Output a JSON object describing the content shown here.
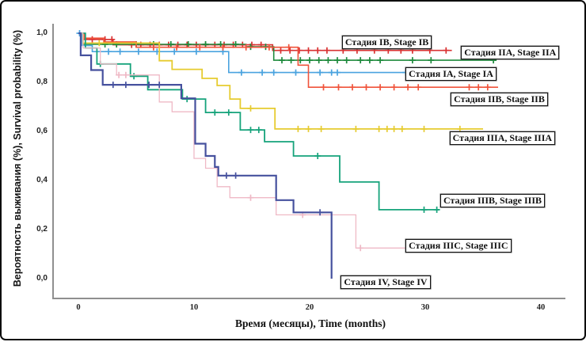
{
  "figure": {
    "background": "#ffffff",
    "border_color": "#0a0a0a"
  },
  "axes": {
    "line_color": "#8f8f8f",
    "tick_label_color": "#222222"
  },
  "chart_data": {
    "type": "line",
    "subtype": "kaplan-meier-step-survival",
    "title": "",
    "xlabel": "Время (месяцы), Time (months)",
    "ylabel": "Вероятность выживания (%), Survival probability (%)",
    "x_ticks": [
      0,
      10,
      20,
      30,
      40
    ],
    "x_tick_labels": [
      "0",
      "10",
      "20",
      "30",
      "40"
    ],
    "y_ticks": [
      1.0,
      0.8,
      0.6,
      0.4,
      0.2,
      0.0
    ],
    "y_tick_labels": [
      "1,0",
      "0,8",
      "0,6",
      "0,4",
      "0,2",
      "0,0"
    ],
    "xlim": [
      -2.2,
      42.5
    ],
    "ylim": [
      0.0,
      1.04
    ],
    "grid": false,
    "legend_position": "boxed labels next to curve ends",
    "marker_meaning": "plus marks = censored observations",
    "series": [
      {
        "id": "ib",
        "label": "Стадия IB, Stage IB",
        "color": "#d93232",
        "line_width": 1.6,
        "steps": [
          [
            0,
            1.0
          ],
          [
            0.3,
            0.975
          ],
          [
            3,
            0.953
          ],
          [
            16.8,
            0.93
          ],
          [
            32.3,
            0.93
          ]
        ],
        "censor_months": [
          1.2,
          2.3,
          2.9,
          4.6,
          5.4,
          6.2,
          7.0,
          7.8,
          8.6,
          9.4,
          10.2,
          11.0,
          11.8,
          12.6,
          13.4,
          14.2,
          15.0,
          15.8,
          17.5,
          18.3,
          19.1,
          19.9,
          20.7,
          21.5,
          22.9,
          24.1,
          25.6,
          26.8,
          27.9,
          28.9,
          30.4,
          31.8
        ],
        "label_anchor": {
          "month": 22.8,
          "prob": 0.99
        }
      },
      {
        "id": "iia",
        "label": "Стадия IIA, Stage IIA",
        "color": "#1f8a3d",
        "line_width": 1.6,
        "steps": [
          [
            0,
            1.0
          ],
          [
            0.4,
            0.955
          ],
          [
            14.5,
            0.945
          ],
          [
            16.9,
            0.89
          ],
          [
            36,
            0.89
          ]
        ],
        "censor_months": [
          2.3,
          3.3,
          5.0,
          6.5,
          8.0,
          9.5,
          11.0,
          12.3,
          13.6,
          14.9,
          16.2,
          17.6,
          18.4,
          19.2,
          20.0,
          20.8,
          21.6,
          22.4,
          23.2,
          24.4,
          25.2,
          26.1,
          28.9,
          30.5,
          35.9
        ],
        "label_anchor": {
          "month": 33.1,
          "prob": 0.948
        }
      },
      {
        "id": "ia",
        "label": "Стадия IA, Stage IA",
        "color": "#4aa3df",
        "line_width": 1.6,
        "steps": [
          [
            0,
            1.0
          ],
          [
            0.3,
            0.95
          ],
          [
            1.2,
            0.925
          ],
          [
            13,
            0.84
          ],
          [
            28.4,
            0.84
          ]
        ],
        "censor_months": [
          0.1,
          2.6,
          3.6,
          5.2,
          6.8,
          8.3,
          10.2,
          12.5,
          14.1,
          15.9,
          16.9,
          18.8,
          20.9,
          21.9,
          22.4,
          28.3
        ],
        "label_anchor": {
          "month": 28.3,
          "prob": 0.861
        }
      },
      {
        "id": "iib",
        "label": "Стадия IIB, Stage IIB",
        "color": "#f0533b",
        "line_width": 1.6,
        "steps": [
          [
            0,
            1.0
          ],
          [
            0.5,
            0.98
          ],
          [
            2.2,
            0.965
          ],
          [
            5,
            0.943
          ],
          [
            19,
            0.87
          ],
          [
            19.9,
            0.78
          ],
          [
            36.3,
            0.78
          ]
        ],
        "censor_months": [
          6.5,
          8.5,
          10.5,
          12.5,
          14.5,
          16.5,
          18.2,
          21.2,
          22.5,
          23.7,
          24.9,
          26.1,
          27.3,
          28.5,
          29.4,
          33.8,
          34.6,
          35.4
        ],
        "label_anchor": {
          "month": 32.2,
          "prob": 0.758
        }
      },
      {
        "id": "iiia",
        "label": "Стадия IIIA, Stage IIIA",
        "color": "#e6cb2f",
        "line_width": 1.8,
        "steps": [
          [
            0,
            1.0
          ],
          [
            0.4,
            0.96
          ],
          [
            7,
            0.888
          ],
          [
            8.1,
            0.853
          ],
          [
            10.7,
            0.816
          ],
          [
            12,
            0.787
          ],
          [
            13.1,
            0.732
          ],
          [
            14,
            0.694
          ],
          [
            17,
            0.61
          ],
          [
            35,
            0.61
          ]
        ],
        "censor_months": [
          1.8,
          14.9,
          19.0,
          19.9,
          21.0,
          24.0,
          26.0,
          26.7,
          27.3,
          28.0,
          29.9,
          33.0
        ],
        "label_anchor": {
          "month": 32.1,
          "prob": 0.6
        }
      },
      {
        "id": "iiib",
        "label": "Стадия IIIB, Stage IIIB",
        "color": "#16a37b",
        "line_width": 1.8,
        "steps": [
          [
            0,
            1.0
          ],
          [
            0.6,
            0.94
          ],
          [
            1.6,
            0.875
          ],
          [
            4.5,
            0.825
          ],
          [
            6,
            0.77
          ],
          [
            9,
            0.732
          ],
          [
            11,
            0.677
          ],
          [
            14,
            0.606
          ],
          [
            16.1,
            0.558
          ],
          [
            18.6,
            0.5
          ],
          [
            22.6,
            0.394
          ],
          [
            26,
            0.281
          ],
          [
            31.2,
            0.281
          ]
        ],
        "censor_months": [
          1.9,
          4.8,
          9.4,
          11.8,
          13.0,
          14.9,
          15.6,
          20.7,
          29.9,
          31.0
        ],
        "label_anchor": {
          "month": 31.3,
          "prob": 0.345
        }
      },
      {
        "id": "iiic",
        "label": "Стадия IIIC, Stage IIIC",
        "color": "#efb9c6",
        "line_width": 1.3,
        "steps": [
          [
            0,
            1.0
          ],
          [
            0.4,
            0.94
          ],
          [
            1.9,
            0.875
          ],
          [
            3.3,
            0.83
          ],
          [
            7,
            0.72
          ],
          [
            8.1,
            0.68
          ],
          [
            10,
            0.49
          ],
          [
            11,
            0.45
          ],
          [
            12,
            0.375
          ],
          [
            13.1,
            0.33
          ],
          [
            17.1,
            0.26
          ],
          [
            24,
            0.125
          ],
          [
            28.3,
            0.125
          ]
        ],
        "censor_months": [
          3.5,
          4.1,
          14.9,
          19.4,
          24.4
        ],
        "label_anchor": {
          "month": 28.3,
          "prob": 0.161
        }
      },
      {
        "id": "iv",
        "label": "Стадия IV, Stage IV",
        "color": "#46519e",
        "line_width": 2.2,
        "steps": [
          [
            0,
            1.0
          ],
          [
            0.2,
            0.91
          ],
          [
            1.1,
            0.85
          ],
          [
            2.1,
            0.79
          ],
          [
            8.9,
            0.735
          ],
          [
            10.1,
            0.55
          ],
          [
            11,
            0.5
          ],
          [
            11.8,
            0.455
          ],
          [
            12.1,
            0.42
          ],
          [
            17.1,
            0.32
          ],
          [
            18.6,
            0.27
          ],
          [
            21.9,
            0.27
          ],
          [
            21.9,
            0.0
          ]
        ],
        "censor_months": [
          3.0,
          4.1,
          6.1,
          7.0,
          12.8,
          13.6,
          20.9
        ],
        "label_anchor": {
          "month": 22.7,
          "prob": 0.013
        }
      }
    ]
  }
}
